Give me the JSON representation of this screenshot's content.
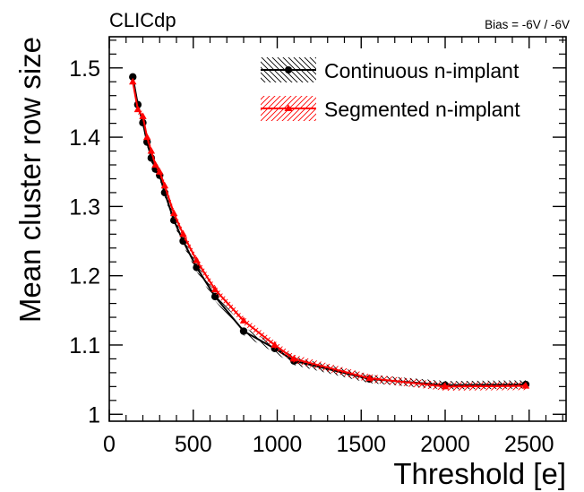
{
  "header": {
    "experiment": "CLICdp",
    "bias_label": "Bias = -6V / -6V"
  },
  "colors": {
    "continuous": "#000000",
    "segmented": "#ff0000"
  },
  "chart_data": {
    "type": "line",
    "title": "",
    "xlabel": "Threshold [e]",
    "ylabel": "Mean cluster row size",
    "xlim": [
      0,
      2720
    ],
    "ylim": [
      0.99,
      1.545
    ],
    "xticks": [
      0,
      500,
      1000,
      1500,
      2000,
      2500
    ],
    "yticks": [
      1,
      1.1,
      1.2,
      1.3,
      1.4,
      1.5
    ],
    "ytick_labels": [
      "1",
      "1.1",
      "1.2",
      "1.3",
      "1.4",
      "1.5"
    ],
    "grid": false,
    "legend_position": "top-right",
    "series": [
      {
        "name": "Continuous n-implant",
        "marker": "circle",
        "color": "#000000",
        "hatch": "back-diagonal",
        "band": 0.006,
        "x": [
          140,
          170,
          200,
          225,
          250,
          275,
          300,
          330,
          385,
          440,
          520,
          630,
          800,
          985,
          1100,
          1550,
          2000,
          2480
        ],
        "y": [
          1.487,
          1.447,
          1.421,
          1.393,
          1.37,
          1.354,
          1.345,
          1.32,
          1.28,
          1.25,
          1.212,
          1.17,
          1.12,
          1.095,
          1.077,
          1.051,
          1.042,
          1.043
        ]
      },
      {
        "name": "Segmented n-implant",
        "marker": "triangle",
        "color": "#ff0000",
        "hatch": "forward-diagonal",
        "band": 0.006,
        "x": [
          140,
          170,
          200,
          225,
          250,
          275,
          300,
          330,
          385,
          440,
          520,
          630,
          800,
          985,
          1100,
          1550,
          2000,
          2480
        ],
        "y": [
          1.48,
          1.44,
          1.43,
          1.4,
          1.38,
          1.36,
          1.35,
          1.33,
          1.29,
          1.26,
          1.222,
          1.18,
          1.135,
          1.1,
          1.08,
          1.052,
          1.04,
          1.041
        ]
      }
    ]
  }
}
